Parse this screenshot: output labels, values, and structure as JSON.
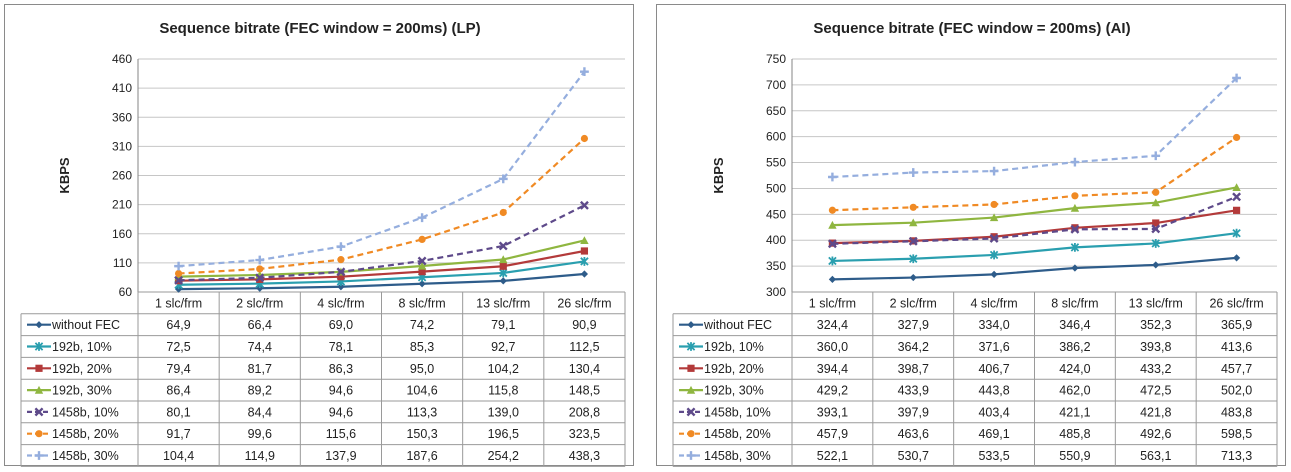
{
  "chart_data": [
    {
      "type": "line",
      "title": "Sequence bitrate (FEC window = 200ms) (LP)",
      "ylabel": "KBPS",
      "xlabel": "",
      "categories": [
        "1 slc/frm",
        "2 slc/frm",
        "4 slc/frm",
        "8 slc/frm",
        "13 slc/frm",
        "26 slc/frm"
      ],
      "ylim": [
        60,
        460
      ],
      "yticks": [
        60,
        110,
        160,
        210,
        260,
        310,
        360,
        410,
        460
      ],
      "grid": true,
      "legend": "data-table",
      "series": [
        {
          "name": "without FEC",
          "values": [
            64.9,
            66.4,
            69.0,
            74.2,
            79.1,
            90.9
          ],
          "labels": [
            "64,9",
            "66,4",
            "69,0",
            "74,2",
            "79,1",
            "90,9"
          ],
          "color": "#2e5c8a",
          "marker": "diamond",
          "dash": false
        },
        {
          "name": "192b, 10%",
          "values": [
            72.5,
            74.4,
            78.1,
            85.3,
            92.7,
            112.5
          ],
          "labels": [
            "72,5",
            "74,4",
            "78,1",
            "85,3",
            "92,7",
            "112,5"
          ],
          "color": "#2a9faf",
          "marker": "asterisk",
          "dash": false
        },
        {
          "name": "192b, 20%",
          "values": [
            79.4,
            81.7,
            86.3,
            95.0,
            104.2,
            130.4
          ],
          "labels": [
            "79,4",
            "81,7",
            "86,3",
            "95,0",
            "104,2",
            "130,4"
          ],
          "color": "#b33a3a",
          "marker": "square",
          "dash": false
        },
        {
          "name": "192b, 30%",
          "values": [
            86.4,
            89.2,
            94.6,
            104.6,
            115.8,
            148.5
          ],
          "labels": [
            "86,4",
            "89,2",
            "94,6",
            "104,6",
            "115,8",
            "148,5"
          ],
          "color": "#8fb640",
          "marker": "triangle",
          "dash": false
        },
        {
          "name": "1458b, 10%",
          "values": [
            80.1,
            84.4,
            94.6,
            113.3,
            139.0,
            208.8
          ],
          "labels": [
            "80,1",
            "84,4",
            "94,6",
            "113,3",
            "139,0",
            "208,8"
          ],
          "color": "#5e4a8a",
          "marker": "x",
          "dash": true
        },
        {
          "name": "1458b, 20%",
          "values": [
            91.7,
            99.6,
            115.6,
            150.3,
            196.5,
            323.5
          ],
          "labels": [
            "91,7",
            "99,6",
            "115,6",
            "150,3",
            "196,5",
            "323,5"
          ],
          "color": "#f08a24",
          "marker": "circle",
          "dash": true
        },
        {
          "name": "1458b, 30%",
          "values": [
            104.4,
            114.9,
            137.9,
            187.6,
            254.2,
            438.3
          ],
          "labels": [
            "104,4",
            "114,9",
            "137,9",
            "187,6",
            "254,2",
            "438,3"
          ],
          "color": "#95aede",
          "marker": "plus",
          "dash": true
        }
      ]
    },
    {
      "type": "line",
      "title": "Sequence bitrate (FEC window = 200ms) (AI)",
      "ylabel": "KBPS",
      "xlabel": "",
      "categories": [
        "1 slc/frm",
        "2 slc/frm",
        "4 slc/frm",
        "8 slc/frm",
        "13 slc/frm",
        "26 slc/frm"
      ],
      "ylim": [
        300,
        750
      ],
      "yticks": [
        300,
        350,
        400,
        450,
        500,
        550,
        600,
        650,
        700,
        750
      ],
      "grid": true,
      "legend": "data-table",
      "series": [
        {
          "name": "without FEC",
          "values": [
            324.4,
            327.9,
            334.0,
            346.4,
            352.3,
            365.9
          ],
          "labels": [
            "324,4",
            "327,9",
            "334,0",
            "346,4",
            "352,3",
            "365,9"
          ],
          "color": "#2e5c8a",
          "marker": "diamond",
          "dash": false
        },
        {
          "name": "192b, 10%",
          "values": [
            360.0,
            364.2,
            371.6,
            386.2,
            393.8,
            413.6
          ],
          "labels": [
            "360,0",
            "364,2",
            "371,6",
            "386,2",
            "393,8",
            "413,6"
          ],
          "color": "#2a9faf",
          "marker": "asterisk",
          "dash": false
        },
        {
          "name": "192b, 20%",
          "values": [
            394.4,
            398.7,
            406.7,
            424.0,
            433.2,
            457.7
          ],
          "labels": [
            "394,4",
            "398,7",
            "406,7",
            "424,0",
            "433,2",
            "457,7"
          ],
          "color": "#b33a3a",
          "marker": "square",
          "dash": false
        },
        {
          "name": "192b, 30%",
          "values": [
            429.2,
            433.9,
            443.8,
            462.0,
            472.5,
            502.0
          ],
          "labels": [
            "429,2",
            "433,9",
            "443,8",
            "462,0",
            "472,5",
            "502,0"
          ],
          "color": "#8fb640",
          "marker": "triangle",
          "dash": false
        },
        {
          "name": "1458b, 10%",
          "values": [
            393.1,
            397.9,
            403.4,
            421.1,
            421.8,
            483.8
          ],
          "labels": [
            "393,1",
            "397,9",
            "403,4",
            "421,1",
            "421,8",
            "483,8"
          ],
          "color": "#5e4a8a",
          "marker": "x",
          "dash": true
        },
        {
          "name": "1458b, 20%",
          "values": [
            457.9,
            463.6,
            469.1,
            485.8,
            492.6,
            598.5
          ],
          "labels": [
            "457,9",
            "463,6",
            "469,1",
            "485,8",
            "492,6",
            "598,5"
          ],
          "color": "#f08a24",
          "marker": "circle",
          "dash": true
        },
        {
          "name": "1458b, 30%",
          "values": [
            522.1,
            530.7,
            533.5,
            550.9,
            563.1,
            713.3
          ],
          "labels": [
            "522,1",
            "530,7",
            "533,5",
            "550,9",
            "563,1",
            "713,3"
          ],
          "color": "#95aede",
          "marker": "plus",
          "dash": true
        }
      ]
    }
  ]
}
